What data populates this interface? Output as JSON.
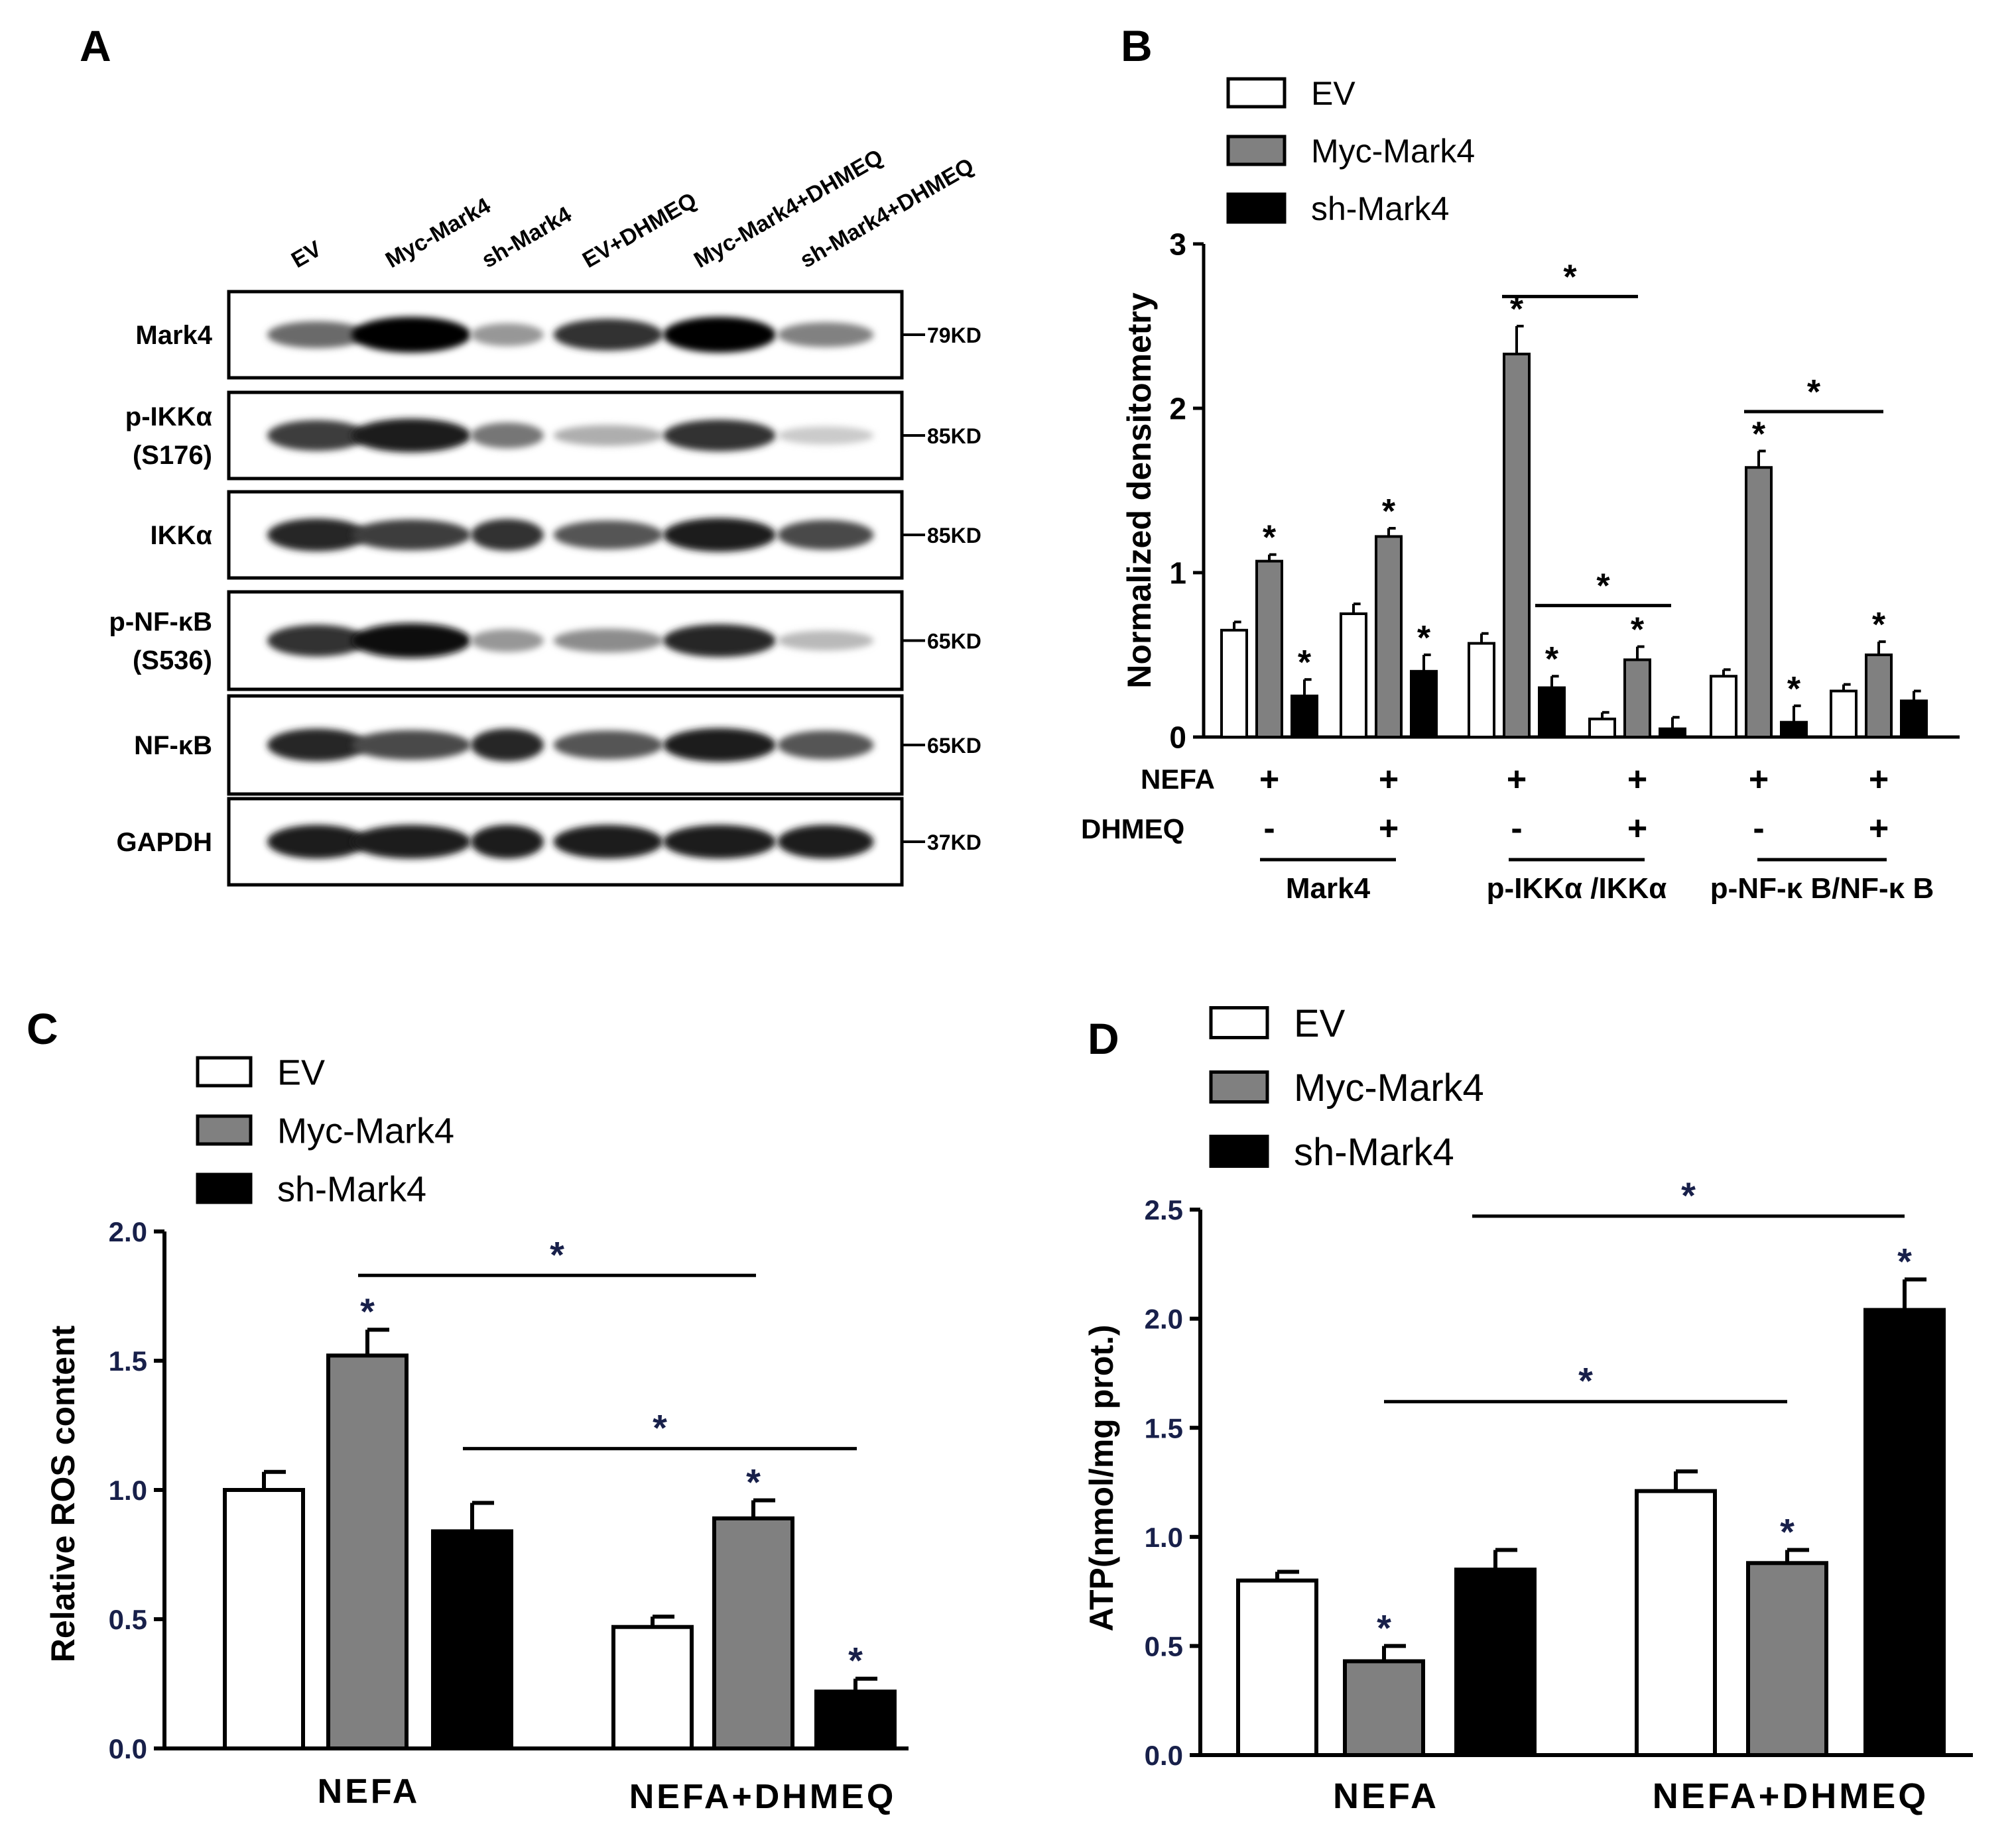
{
  "panel_labels": {
    "A": "A",
    "B": "B",
    "C": "C",
    "D": "D"
  },
  "legend": [
    {
      "label": "EV",
      "color": "#ffffff"
    },
    {
      "label": "Myc-Mark4",
      "color": "#808080"
    },
    {
      "label": "sh-Mark4",
      "color": "#000000"
    }
  ],
  "panel_a": {
    "lanes": [
      "EV",
      "Myc-Mark4",
      "sh-Mark4",
      "EV+DHMEQ",
      "Myc-Mark4+DHMEQ",
      "sh-Mark4+DHMEQ"
    ],
    "rows": [
      {
        "label": [
          "Mark4"
        ],
        "size": "79KD",
        "intensity": [
          0.55,
          1.0,
          0.35,
          0.8,
          1.0,
          0.45
        ]
      },
      {
        "label": [
          "p-IKKα",
          "(S176)"
        ],
        "size": "85KD",
        "intensity": [
          0.75,
          0.9,
          0.5,
          0.25,
          0.8,
          0.12
        ]
      },
      {
        "label": [
          "IKKα"
        ],
        "size": "85KD",
        "intensity": [
          0.85,
          0.75,
          0.8,
          0.65,
          0.9,
          0.7
        ]
      },
      {
        "label": [
          "p-NF-κB",
          "(S536)"
        ],
        "size": "65KD",
        "intensity": [
          0.8,
          0.95,
          0.35,
          0.4,
          0.85,
          0.2
        ]
      },
      {
        "label": [
          "NF-κB"
        ],
        "size": "65KD",
        "intensity": [
          0.85,
          0.7,
          0.85,
          0.65,
          0.9,
          0.65
        ]
      },
      {
        "label": [
          "GAPDH"
        ],
        "size": "37KD",
        "intensity": [
          0.9,
          0.9,
          0.9,
          0.9,
          0.9,
          0.9
        ]
      }
    ]
  },
  "chart_data": [
    {
      "panel": "B",
      "type": "bar",
      "ylabel": "Normalized densitometry",
      "ylim": [
        0,
        3
      ],
      "yticks": [
        "0",
        "1",
        "2",
        "3"
      ],
      "row_labels": {
        "nefa": "NEFA",
        "dhmeq": "DHMEQ"
      },
      "treatment": {
        "nefa": [
          "+",
          "+",
          "+",
          "+",
          "+",
          "+"
        ],
        "dhmeq": [
          "-",
          "+",
          "-",
          "+",
          "-",
          "+"
        ]
      },
      "group_labels": [
        "Mark4",
        "p-IKKα /IKKα",
        "p-NF-κ B/NF-κ B"
      ],
      "series": [
        {
          "name": "EV",
          "values": [
            0.65,
            0.75,
            0.57,
            0.11,
            0.37,
            0.28
          ],
          "errors": [
            0.05,
            0.06,
            0.06,
            0.04,
            0.04,
            0.04
          ],
          "stars": [
            "",
            "",
            "",
            "",
            "",
            ""
          ]
        },
        {
          "name": "Myc-Mark4",
          "values": [
            1.07,
            1.22,
            2.33,
            0.47,
            1.64,
            0.5
          ],
          "errors": [
            0.04,
            0.05,
            0.17,
            0.08,
            0.1,
            0.08
          ],
          "stars": [
            "*",
            "*",
            "*",
            "*",
            "*",
            "*"
          ]
        },
        {
          "name": "sh-Mark4",
          "values": [
            0.25,
            0.4,
            0.3,
            0.05,
            0.09,
            0.22
          ],
          "errors": [
            0.1,
            0.1,
            0.07,
            0.07,
            0.1,
            0.06
          ],
          "stars": [
            "*",
            "*",
            "*",
            "",
            "*",
            ""
          ]
        }
      ],
      "significance": [
        {
          "from": "p-IKKα /IKKα Myc-Mark4",
          "to": "p-IKKα /IKKα DHMEQ Myc-Mark4",
          "label": "*"
        },
        {
          "from": "p-IKKα /IKKα sh-Mark4",
          "to": "p-IKKα /IKKα DHMEQ sh-Mark4",
          "label": "*"
        },
        {
          "from": "p-NF-κ B/NF-κ B Myc-Mark4",
          "to": "p-NF-κ B/NF-κ B DHMEQ Myc-Mark4",
          "label": "*"
        }
      ]
    },
    {
      "panel": "C",
      "type": "bar",
      "ylabel": "Relative ROS content",
      "ylim": [
        0,
        2
      ],
      "yticks": [
        "0.0",
        "0.5",
        "1.0",
        "1.5",
        "2.0"
      ],
      "categories": [
        "NEFA",
        "NEFA+DHMEQ"
      ],
      "series": [
        {
          "name": "EV",
          "values": [
            1.0,
            0.47
          ],
          "errors": [
            0.07,
            0.04
          ],
          "stars": [
            "",
            ""
          ]
        },
        {
          "name": "Myc-Mark4",
          "values": [
            1.52,
            0.89
          ],
          "errors": [
            0.1,
            0.07
          ],
          "stars": [
            "*",
            "*"
          ]
        },
        {
          "name": "sh-Mark4",
          "values": [
            0.84,
            0.22
          ],
          "errors": [
            0.11,
            0.05
          ],
          "stars": [
            "",
            "*"
          ]
        }
      ],
      "significance": [
        {
          "from": "NEFA Myc-Mark4",
          "to": "NEFA+DHMEQ Myc-Mark4",
          "label": "*"
        },
        {
          "from": "NEFA sh-Mark4",
          "to": "NEFA+DHMEQ sh-Mark4",
          "label": "*"
        }
      ]
    },
    {
      "panel": "D",
      "type": "bar",
      "ylabel": "ATP(nmol/mg prot.)",
      "ylim": [
        0,
        2.5
      ],
      "yticks": [
        "0.0",
        "0.5",
        "1.0",
        "1.5",
        "2.0",
        "2.5"
      ],
      "categories": [
        "NEFA",
        "NEFA+DHMEQ"
      ],
      "series": [
        {
          "name": "EV",
          "values": [
            0.8,
            1.21
          ],
          "errors": [
            0.04,
            0.09
          ],
          "stars": [
            "",
            ""
          ]
        },
        {
          "name": "Myc-Mark4",
          "values": [
            0.43,
            0.88
          ],
          "errors": [
            0.07,
            0.06
          ],
          "stars": [
            "*",
            "*"
          ]
        },
        {
          "name": "sh-Mark4",
          "values": [
            0.85,
            2.04
          ],
          "errors": [
            0.09,
            0.14
          ],
          "stars": [
            "",
            "*"
          ]
        }
      ],
      "significance": [
        {
          "from": "NEFA Myc-Mark4",
          "to": "NEFA+DHMEQ Myc-Mark4",
          "label": "*"
        },
        {
          "from": "NEFA sh-Mark4",
          "to": "NEFA+DHMEQ sh-Mark4",
          "label": "*"
        }
      ]
    }
  ]
}
